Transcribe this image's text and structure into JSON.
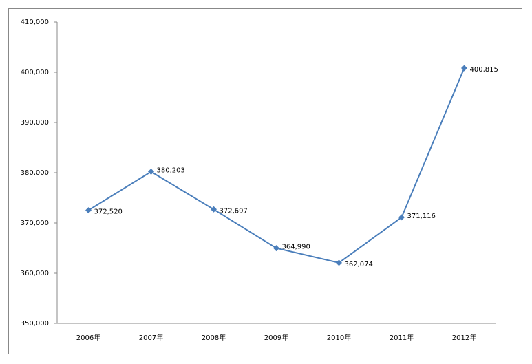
{
  "chart_data": {
    "type": "line",
    "categories": [
      "2006年",
      "2007年",
      "2008年",
      "2009年",
      "2010年",
      "2011年",
      "2012年"
    ],
    "series": [
      {
        "name": "",
        "color": "#4a7ebb",
        "values": [
          372520,
          380203,
          372697,
          364990,
          362074,
          371116,
          400815
        ],
        "value_labels": [
          "372,520",
          "380,203",
          "372,697",
          "364,990",
          "362,074",
          "371,116",
          "400,815"
        ]
      }
    ],
    "ylim": [
      350000,
      410000
    ],
    "yticks": [
      {
        "value": 350000,
        "label": "350,000"
      },
      {
        "value": 360000,
        "label": "360,000"
      },
      {
        "value": 370000,
        "label": "370,000"
      },
      {
        "value": 380000,
        "label": "380,000"
      },
      {
        "value": 390000,
        "label": "390,000"
      },
      {
        "value": 400000,
        "label": "400,000"
      },
      {
        "value": 410000,
        "label": "410,000"
      }
    ],
    "grid": false
  }
}
